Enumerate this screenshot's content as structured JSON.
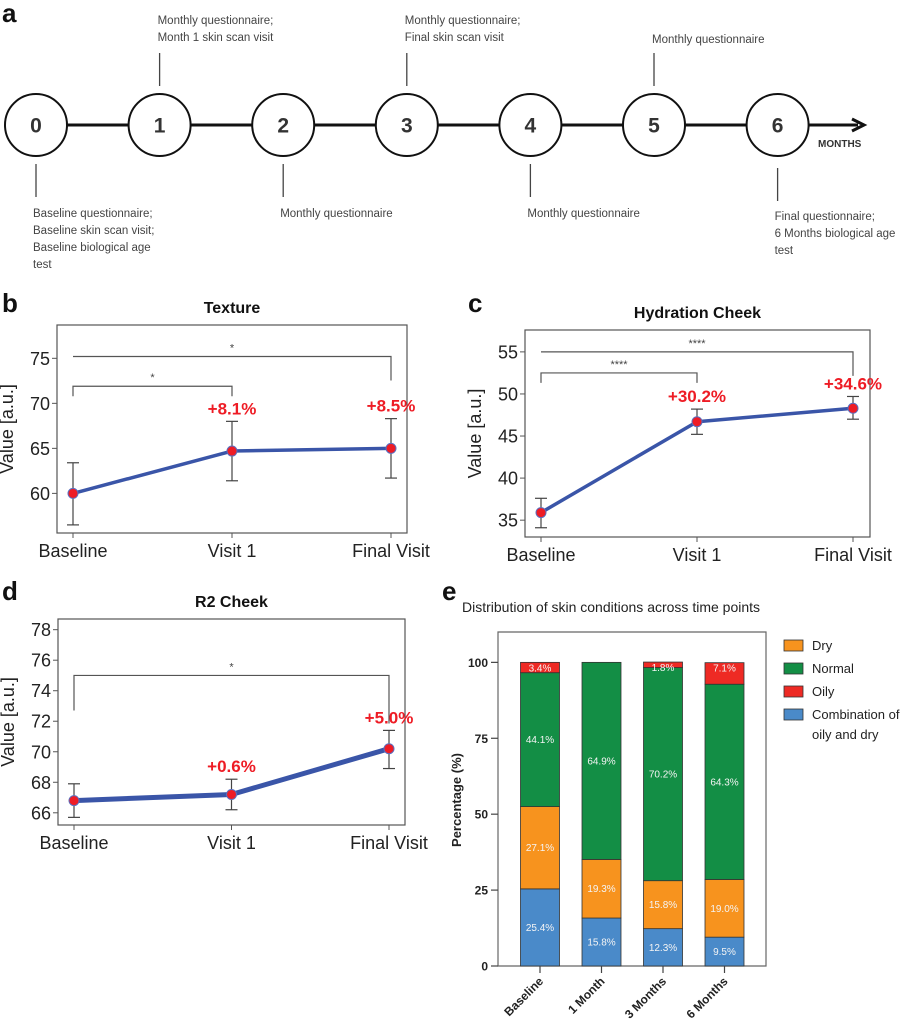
{
  "figure": {
    "panel_letters": [
      "a",
      "b",
      "c",
      "d",
      "e"
    ]
  },
  "timeline": {
    "axis_label": "MONTHS",
    "months": [
      "0",
      "1",
      "2",
      "3",
      "4",
      "5",
      "6"
    ],
    "notes": [
      {
        "month": "0",
        "position": "below",
        "lines": [
          "Baseline questionnaire;",
          "Baseline skin scan visit;",
          "Baseline biological age",
          "test"
        ]
      },
      {
        "month": "1",
        "position": "above",
        "lines": [
          "Monthly questionnaire;",
          "Month 1 skin scan visit"
        ]
      },
      {
        "month": "2",
        "position": "below",
        "lines": [
          "Monthly questionnaire"
        ]
      },
      {
        "month": "3",
        "position": "above",
        "lines": [
          "Monthly questionnaire;",
          "Final skin scan visit"
        ]
      },
      {
        "month": "4",
        "position": "below",
        "lines": [
          "Monthly questionnaire"
        ]
      },
      {
        "month": "5",
        "position": "above",
        "lines": [
          "Monthly questionnaire"
        ]
      },
      {
        "month": "6",
        "position": "below",
        "lines": [
          "Final questionnaire;",
          "6 Months biological age",
          "test"
        ]
      }
    ]
  },
  "colors": {
    "line": "#3a55a8",
    "marker": "#ee1c25",
    "pct_label": "#ee1c25",
    "dry": "#f7931e",
    "normal": "#138e45",
    "oily": "#ee2a24",
    "combination": "#4a8ac9"
  },
  "chart_data": [
    {
      "panel": "b",
      "type": "line",
      "title": "Texture",
      "xlabel": "",
      "ylabel": "Value [a.u.]",
      "categories": [
        "Baseline",
        "Visit 1",
        "Final Visit"
      ],
      "values": [
        60.0,
        64.7,
        65.0
      ],
      "error_upper": [
        63.4,
        68.0,
        68.3
      ],
      "error_lower": [
        56.5,
        61.4,
        61.7
      ],
      "ylim": [
        55.6,
        78.7
      ],
      "yticks": [
        60,
        65,
        70,
        75
      ],
      "grid": false,
      "change_labels": [
        null,
        "+8.1%",
        "+8.5%"
      ],
      "significance": [
        {
          "from": 0,
          "to": 1,
          "label": "*",
          "y": 71.9
        },
        {
          "from": 0,
          "to": 2,
          "label": "*",
          "y": 75.2
        }
      ]
    },
    {
      "panel": "c",
      "type": "line",
      "title": "Hydration Cheek",
      "xlabel": "",
      "ylabel": "Value [a.u.]",
      "categories": [
        "Baseline",
        "Visit 1",
        "Final Visit"
      ],
      "values": [
        35.9,
        46.7,
        48.3
      ],
      "error_upper": [
        37.6,
        48.2,
        49.7
      ],
      "error_lower": [
        34.1,
        45.2,
        47.0
      ],
      "ylim": [
        33.0,
        57.6
      ],
      "yticks": [
        35,
        40,
        45,
        50,
        55
      ],
      "grid": false,
      "change_labels": [
        null,
        "+30.2%",
        "+34.6%"
      ],
      "significance": [
        {
          "from": 0,
          "to": 1,
          "label": "****",
          "y": 52.5
        },
        {
          "from": 0,
          "to": 2,
          "label": "****",
          "y": 55.0
        }
      ]
    },
    {
      "panel": "d",
      "type": "line",
      "title": "R2 Cheek",
      "xlabel": "",
      "ylabel": "Value [a.u.]",
      "categories": [
        "Baseline",
        "Visit 1",
        "Final Visit"
      ],
      "values": [
        66.8,
        67.2,
        70.2
      ],
      "error_upper": [
        67.9,
        68.2,
        71.4
      ],
      "error_lower": [
        65.7,
        66.2,
        68.9
      ],
      "ylim": [
        65.2,
        78.7
      ],
      "yticks": [
        66,
        68,
        70,
        72,
        74,
        76,
        78
      ],
      "grid": false,
      "change_labels": [
        null,
        "+0.6%",
        "+5.0%"
      ],
      "significance": [
        {
          "from": 0,
          "to": 2,
          "label": "*",
          "y": 75.0
        }
      ]
    },
    {
      "panel": "e",
      "type": "bar",
      "stacked": true,
      "title": "Distribution of skin conditions across time points",
      "xlabel": "",
      "ylabel": "Percentage (%)",
      "categories": [
        "Baseline",
        "1 Month",
        "3 Months",
        "6 Months"
      ],
      "ylim": [
        0,
        110
      ],
      "yticks": [
        0,
        25,
        50,
        75,
        100
      ],
      "grid": false,
      "legend_position": "right",
      "legend": [
        "Dry",
        "Normal",
        "Oily",
        "Combination of oily and dry"
      ],
      "series": [
        {
          "name": "Combination of oily and dry",
          "key": "combination",
          "values": [
            25.4,
            15.8,
            12.3,
            9.5
          ],
          "labels": [
            "25.4%",
            "15.8%",
            "12.3%",
            "9.5%"
          ]
        },
        {
          "name": "Dry",
          "key": "dry",
          "values": [
            27.1,
            19.3,
            15.8,
            19.0
          ],
          "labels": [
            "27.1%",
            "19.3%",
            "15.8%",
            "19.0%"
          ]
        },
        {
          "name": "Normal",
          "key": "normal",
          "values": [
            44.1,
            64.9,
            70.2,
            64.3
          ],
          "labels": [
            "44.1%",
            "64.9%",
            "70.2%",
            "64.3%"
          ]
        },
        {
          "name": "Oily",
          "key": "oily",
          "values": [
            3.4,
            0,
            1.8,
            7.1
          ],
          "labels": [
            "3.4%",
            "",
            "1.8%",
            "7.1%"
          ]
        }
      ]
    }
  ]
}
